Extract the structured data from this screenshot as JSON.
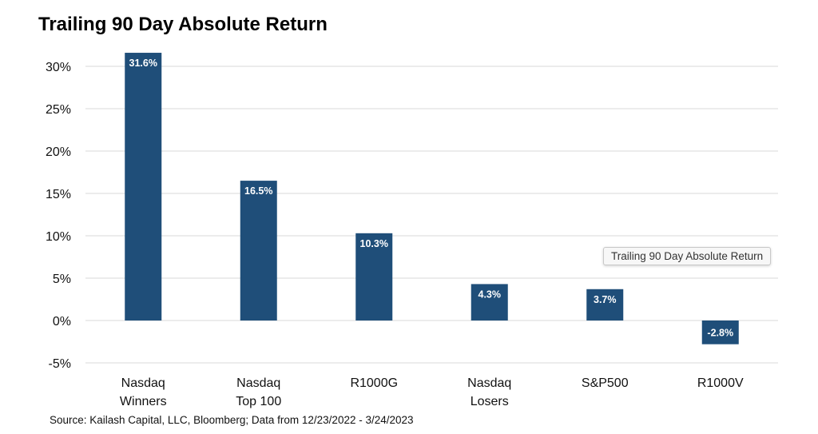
{
  "title": "Trailing 90 Day Absolute Return",
  "source": "Source: Kailash Capital, LLC, Bloomberg; Data from 12/23/2022 - 3/24/2023",
  "tooltip": "Trailing 90 Day Absolute Return",
  "colors": {
    "bar": "#1f4e79",
    "grid": "#d9d9d9",
    "label_text": "#ffffff"
  },
  "chart_data": {
    "type": "bar",
    "title": "Trailing 90 Day Absolute Return",
    "categories": [
      [
        "Nasdaq",
        "Winners"
      ],
      [
        "Nasdaq",
        "Top 100"
      ],
      [
        "R1000G"
      ],
      [
        "Nasdaq",
        "Losers"
      ],
      [
        "S&P500"
      ],
      [
        "R1000V"
      ]
    ],
    "values": [
      31.6,
      16.5,
      10.3,
      4.3,
      3.7,
      -2.8
    ],
    "data_labels": [
      "31.6%",
      "16.5%",
      "10.3%",
      "4.3%",
      "3.7%",
      "-2.8%"
    ],
    "y_ticks": [
      30,
      25,
      20,
      15,
      10,
      5,
      0,
      -5
    ],
    "y_tick_labels": [
      "30%",
      "25%",
      "20%",
      "15%",
      "10%",
      "5%",
      "0%",
      "-5%"
    ],
    "ylim": [
      -5,
      31.6
    ],
    "grid": true,
    "legend": "none"
  }
}
